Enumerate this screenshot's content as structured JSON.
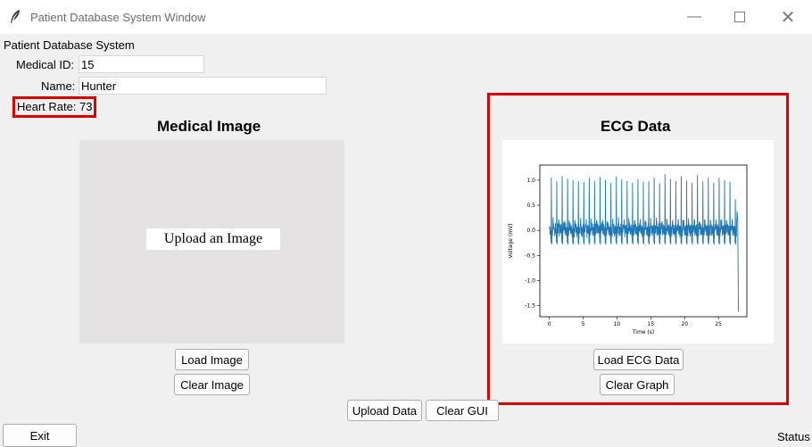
{
  "window": {
    "title": "Patient Database System Window"
  },
  "form": {
    "header": "Patient Database System",
    "medical_id_label": "Medical ID:",
    "medical_id_value": "15",
    "name_label": "Name:",
    "name_value": "Hunter",
    "heart_rate_label": "Heart Rate:",
    "heart_rate_value": "73"
  },
  "image_panel": {
    "title": "Medical Image",
    "placeholder": "Upload an Image",
    "load_button": "Load Image",
    "clear_button": "Clear Image"
  },
  "ecg_panel": {
    "title": "ECG Data",
    "load_button": "Load ECG Data",
    "clear_button": "Clear Graph"
  },
  "actions": {
    "upload_button": "Upload Data",
    "clear_gui_button": "Clear GUI",
    "exit_button": "Exit"
  },
  "status": "Status",
  "highlight_color": "#e00000",
  "chart_data": {
    "type": "line",
    "title": "",
    "xlabel": "Time (s)",
    "ylabel": "Voltage (mV)",
    "xlim": [
      -1.4,
      29.2
    ],
    "ylim": [
      -1.72,
      1.3
    ],
    "xticks": [
      0,
      5,
      10,
      15,
      20,
      25
    ],
    "yticks": [
      -1.5,
      -1.0,
      -0.5,
      0.0,
      0.5,
      1.0
    ],
    "grid": false,
    "line_color": "#1f77b4",
    "series": [
      {
        "name": "",
        "peak_times": [
          0.3,
          1.1,
          1.9,
          2.7,
          3.5,
          4.3,
          5.1,
          5.9,
          6.7,
          7.5,
          8.3,
          9.1,
          9.9,
          10.7,
          11.5,
          12.3,
          13.1,
          13.9,
          14.7,
          15.5,
          16.3,
          17.1,
          17.9,
          18.7,
          19.5,
          20.3,
          21.1,
          21.9,
          22.7,
          23.5,
          24.3,
          25.1,
          25.9,
          26.7,
          27.5
        ],
        "peak_values": [
          1.05,
          0.98,
          1.08,
          1.03,
          1.0,
          0.98,
          0.96,
          1.05,
          0.98,
          1.06,
          1.0,
          0.95,
          1.07,
          1.02,
          0.98,
          0.95,
          1.02,
          0.97,
          0.98,
          1.05,
          0.94,
          1.12,
          1.02,
          0.98,
          1.08,
          0.99,
          0.95,
          1.1,
          0.98,
          1.05,
          0.95,
          1.05,
          1.0,
          0.97,
          0.62
        ],
        "baseline": 0.0,
        "end_min": -1.62
      }
    ]
  }
}
